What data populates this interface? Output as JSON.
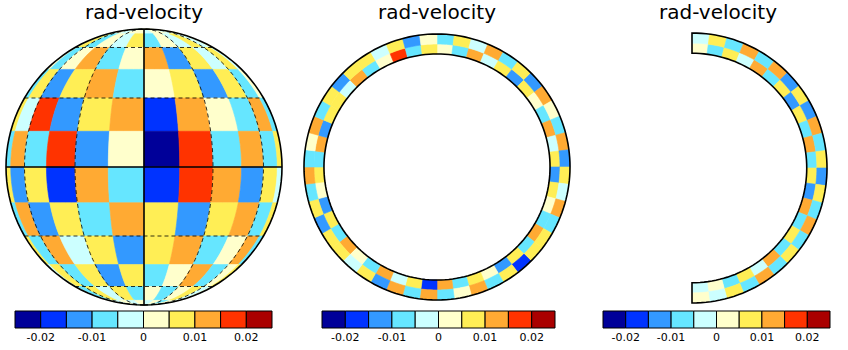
{
  "chart_data": [
    {
      "type": "sphere",
      "title": "rad-velocity",
      "grid": true,
      "values": [
        [
          0.002,
          -0.003,
          0.004,
          -0.002,
          0.003,
          0.001,
          -0.004,
          0.002,
          0.003,
          -0.002,
          0.001,
          0.002
        ],
        [
          -0.003,
          0.006,
          -0.008,
          0.004,
          -0.002,
          0.009,
          -0.006,
          0.003,
          -0.004,
          0.007,
          -0.003,
          0.002
        ],
        [
          0.004,
          -0.009,
          0.003,
          0.011,
          -0.007,
          0.002,
          0.013,
          -0.011,
          0.006,
          -0.004,
          0.008,
          -0.002
        ],
        [
          -0.006,
          0.008,
          -0.012,
          0.005,
          0.014,
          -0.009,
          0.003,
          0.007,
          -0.015,
          0.009,
          -0.005,
          0.004
        ],
        [
          0.007,
          -0.004,
          0.016,
          -0.013,
          0.006,
          0.011,
          -0.018,
          0.012,
          0.004,
          -0.008,
          0.013,
          -0.006
        ],
        [
          -0.009,
          0.012,
          -0.006,
          0.018,
          -0.011,
          0.004,
          -0.021,
          0.016,
          -0.009,
          0.014,
          -0.007,
          0.005
        ],
        [
          0.008,
          -0.014,
          0.009,
          -0.016,
          0.013,
          -0.005,
          -0.019,
          0.017,
          0.011,
          -0.012,
          0.006,
          -0.004
        ],
        [
          -0.005,
          0.011,
          -0.013,
          0.007,
          -0.009,
          0.015,
          0.008,
          -0.014,
          0.005,
          0.012,
          -0.009,
          0.007
        ],
        [
          0.006,
          -0.007,
          0.012,
          -0.004,
          0.009,
          -0.012,
          0.006,
          0.01,
          -0.008,
          0.004,
          0.011,
          -0.005
        ],
        [
          -0.004,
          0.009,
          -0.005,
          0.008,
          -0.011,
          0.006,
          -0.009,
          0.004,
          0.012,
          -0.007,
          0.003,
          0.006
        ],
        [
          0.003,
          -0.005,
          0.007,
          -0.003,
          0.005,
          -0.008,
          0.004,
          -0.006,
          0.003,
          0.008,
          -0.004,
          0.002
        ],
        [
          -0.002,
          0.003,
          -0.004,
          0.002,
          -0.003,
          0.004,
          -0.002,
          0.003,
          -0.005,
          0.002,
          0.004,
          -0.003
        ]
      ],
      "colorbar": {
        "range": [
          -0.025,
          0.025
        ],
        "ticks": [
          -0.02,
          -0.01,
          0,
          0.01,
          0.02
        ],
        "colors": [
          "#000099",
          "#0033ff",
          "#3399ff",
          "#66e6ff",
          "#ccffff",
          "#ffffcc",
          "#ffee55",
          "#ffaa33",
          "#ff3300",
          "#aa0000"
        ]
      }
    },
    {
      "type": "equatorial_slice",
      "title": "rad-velocity",
      "values": [
        [
          0.004,
          -0.007,
          0.011,
          -0.003,
          0.008,
          -0.012,
          0.005,
          0.002,
          -0.009,
          0.013,
          -0.004,
          0.007,
          -0.011,
          0.006,
          0.003,
          -0.008,
          0.015,
          -0.005,
          0.009,
          -0.013,
          0.004,
          0.007,
          -0.006,
          0.012,
          -0.017,
          0.008,
          -0.003,
          0.01,
          -0.007,
          0.004,
          0.014,
          -0.009,
          0.006,
          -0.012,
          0.003,
          0.009,
          -0.005,
          0.011,
          -0.014,
          0.005,
          0.007,
          -0.004,
          0.012,
          -0.008,
          0.003,
          0.016,
          -0.006,
          0.008
        ],
        [
          -0.005,
          0.009,
          -0.004,
          0.013,
          -0.008,
          0.006,
          -0.014,
          0.01,
          0.004,
          -0.006,
          0.011,
          -0.012,
          0.007,
          -0.003,
          0.012,
          -0.01,
          0.005,
          0.008,
          -0.016,
          0.006,
          -0.009,
          0.013,
          0.003,
          -0.007,
          0.01,
          -0.005,
          0.014,
          -0.011,
          0.006,
          -0.003,
          0.009,
          0.005,
          -0.013,
          0.008,
          -0.006,
          0.012,
          -0.009,
          0.004,
          0.011,
          -0.007,
          0.006,
          -0.012,
          0.005,
          0.009,
          -0.004,
          0.007,
          -0.011,
          0.003
        ]
      ],
      "colorbar": {
        "range": [
          -0.025,
          0.025
        ],
        "ticks": [
          -0.02,
          -0.01,
          0,
          0.01,
          0.02
        ],
        "colors": [
          "#000099",
          "#0033ff",
          "#3399ff",
          "#66e6ff",
          "#ccffff",
          "#ffffcc",
          "#ffee55",
          "#ffaa33",
          "#ff3300",
          "#aa0000"
        ]
      }
    },
    {
      "type": "meridional_slice",
      "title": "rad-velocity",
      "values": [
        [
          0.003,
          -0.005,
          0.008,
          -0.004,
          0.011,
          -0.007,
          0.005,
          -0.012,
          0.009,
          -0.006,
          0.014,
          -0.008,
          0.006,
          -0.013,
          0.01,
          -0.005,
          0.007,
          -0.009,
          0.012,
          -0.004,
          0.006,
          -0.007,
          0.004,
          -0.002
        ],
        [
          -0.004,
          0.006,
          -0.009,
          0.012,
          -0.006,
          0.01,
          -0.013,
          0.007,
          -0.011,
          0.015,
          -0.007,
          0.009,
          -0.012,
          0.008,
          -0.006,
          0.013,
          -0.009,
          0.005,
          -0.008,
          0.011,
          -0.005,
          0.008,
          -0.003,
          0.002
        ]
      ],
      "colorbar": {
        "range": [
          -0.025,
          0.025
        ],
        "ticks": [
          -0.02,
          -0.01,
          0,
          0.01,
          0.02
        ],
        "colors": [
          "#000099",
          "#0033ff",
          "#3399ff",
          "#66e6ff",
          "#ccffff",
          "#ffffcc",
          "#ffee55",
          "#ffaa33",
          "#ff3300",
          "#aa0000"
        ]
      }
    }
  ]
}
